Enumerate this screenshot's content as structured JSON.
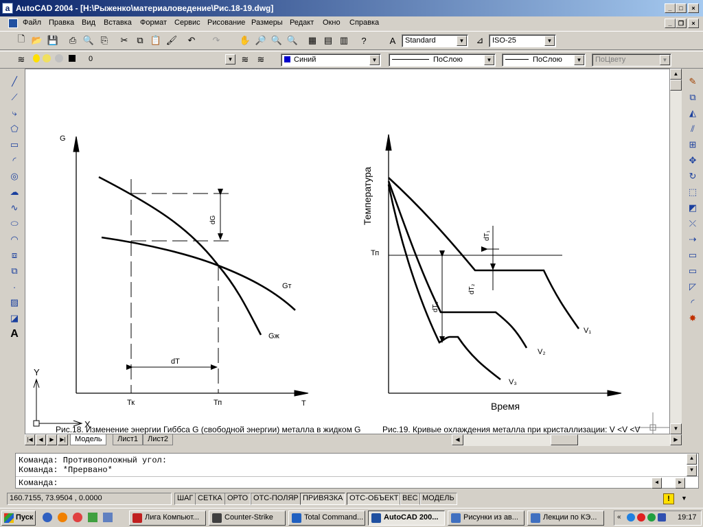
{
  "window": {
    "title": "AutoCAD 2004 - [H:\\Рыженко\\материаловедение\\Рис.18-19.dwg]"
  },
  "menu": [
    "Файл",
    "Правка",
    "Вид",
    "Вставка",
    "Формат",
    "Сервис",
    "Рисование",
    "Размеры",
    "Редакт",
    "Окно",
    "Справка"
  ],
  "styles_toolbar": {
    "text_style": "Standard",
    "dim_style": "ISO-25"
  },
  "properties_toolbar": {
    "layer": "0",
    "color": "Синий",
    "linetype": "ПоСлою",
    "lineweight": "ПоСлою",
    "plotstyle": "ПоЦвету",
    "color_hex": "#0000cc"
  },
  "drawing": {
    "fig18": {
      "y_axis": "G",
      "x_axis": "T",
      "tick_tk": "Тк",
      "tick_tp": "Тп",
      "label_dG": "dG",
      "label_dT": "dT",
      "label_gt": "Gт",
      "label_gzh": "Gж",
      "caption": "Рис.18. Изменение энергии Гиббса G (свободной энергии) металла в жидком G"
    },
    "fig19": {
      "y_axis": "Температура",
      "x_axis": "Время",
      "tick_tp": "Тп",
      "label_dt1": "dT₁",
      "label_dt2": "dT₂",
      "label_dt3": "dT₃",
      "label_v1": "V₁",
      "label_v2": "V₂",
      "label_v3": "V₃",
      "caption": "Рис.19. Кривые охлаждения металла при кристаллизации: V <V <V"
    },
    "ucs": {
      "x": "X",
      "y": "Y"
    }
  },
  "tabs": [
    "Модель",
    "Лист1",
    "Лист2"
  ],
  "active_tab": "Модель",
  "command": {
    "history": [
      "Команда: Противоположный угол:",
      "Команда: *Прервано*"
    ],
    "prompt": "Команда:"
  },
  "status": {
    "coords": "160.7155, 73.9504 , 0.0000",
    "toggles": [
      "ШАГ",
      "СЕТКА",
      "ОРТО",
      "ОТС-ПОЛЯР",
      "ПРИВЯЗКА",
      "ОТС-ОБЪЕКТ",
      "ВЕС",
      "МОДЕЛЬ"
    ]
  },
  "taskbar": {
    "start": "Пуск",
    "tasks": [
      "Лига Компьют...",
      "Counter-Strike",
      "Total Command...",
      "AutoCAD 200...",
      "Рисунки из ав...",
      "Лекции по КЭ..."
    ],
    "active_task": "AutoCAD 200...",
    "clock": "19:17"
  }
}
